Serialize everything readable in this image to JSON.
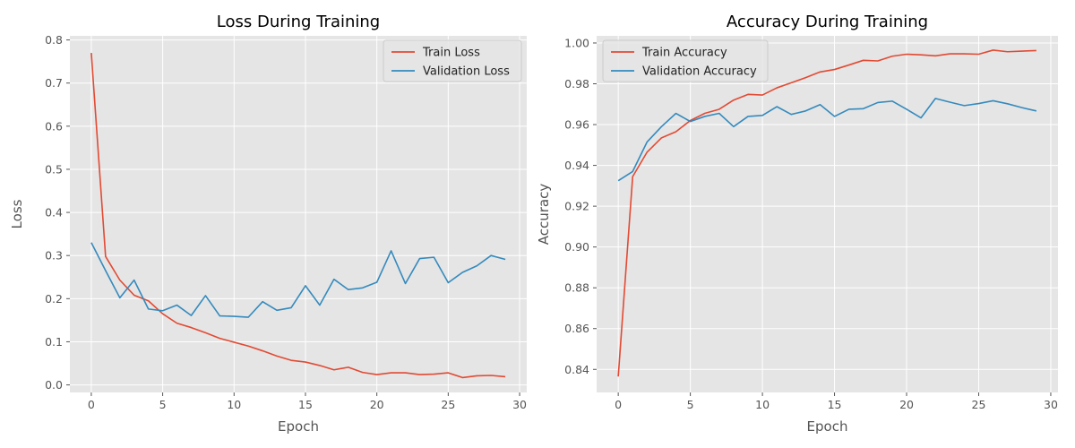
{
  "colors": {
    "train": "#E24A33",
    "validation": "#348ABD",
    "plot_bg": "#E5E5E5",
    "grid": "#FFFFFF"
  },
  "chart_data": [
    {
      "type": "line",
      "title": "Loss During Training",
      "xlabel": "Epoch",
      "ylabel": "Loss",
      "xlim": [
        -1.5,
        30.5
      ],
      "ylim": [
        -0.0175,
        0.8095
      ],
      "xticks": [
        0,
        5,
        10,
        15,
        20,
        25,
        30
      ],
      "xtick_labels": [
        "0",
        "5",
        "10",
        "15",
        "20",
        "25",
        "30"
      ],
      "yticks": [
        0.0,
        0.1,
        0.2,
        0.3,
        0.4,
        0.5,
        0.6,
        0.7,
        0.8
      ],
      "ytick_labels": [
        "0.0",
        "0.1",
        "0.2",
        "0.3",
        "0.4",
        "0.5",
        "0.6",
        "0.7",
        "0.8"
      ],
      "grid": true,
      "legend_position": "top-right",
      "x": [
        0,
        1,
        2,
        3,
        4,
        5,
        6,
        7,
        8,
        9,
        10,
        11,
        12,
        13,
        14,
        15,
        16,
        17,
        18,
        19,
        20,
        21,
        22,
        23,
        24,
        25,
        26,
        27,
        28,
        29
      ],
      "series": [
        {
          "name": "Train Loss",
          "color": "#E24A33",
          "values": [
            0.77,
            0.298,
            0.243,
            0.208,
            0.195,
            0.165,
            0.143,
            0.133,
            0.121,
            0.108,
            0.099,
            0.09,
            0.079,
            0.067,
            0.057,
            0.053,
            0.045,
            0.035,
            0.041,
            0.029,
            0.024,
            0.028,
            0.028,
            0.024,
            0.025,
            0.028,
            0.017,
            0.021,
            0.022,
            0.019
          ]
        },
        {
          "name": "Validation Loss",
          "color": "#348ABD",
          "values": [
            0.33,
            0.265,
            0.202,
            0.243,
            0.176,
            0.172,
            0.185,
            0.161,
            0.207,
            0.16,
            0.159,
            0.157,
            0.193,
            0.173,
            0.179,
            0.23,
            0.185,
            0.245,
            0.221,
            0.225,
            0.238,
            0.311,
            0.235,
            0.293,
            0.296,
            0.237,
            0.261,
            0.276,
            0.3,
            0.291
          ]
        }
      ]
    },
    {
      "type": "line",
      "title": "Accuracy During Training",
      "xlabel": "Epoch",
      "ylabel": "Accuracy",
      "xlim": [
        -1.5,
        30.5
      ],
      "ylim": [
        0.8287,
        1.0035
      ],
      "xticks": [
        0,
        5,
        10,
        15,
        20,
        25,
        30
      ],
      "xtick_labels": [
        "0",
        "5",
        "10",
        "15",
        "20",
        "25",
        "30"
      ],
      "yticks": [
        0.84,
        0.86,
        0.88,
        0.9,
        0.92,
        0.94,
        0.96,
        0.98,
        1.0
      ],
      "ytick_labels": [
        "0.84",
        "0.86",
        "0.88",
        "0.90",
        "0.92",
        "0.94",
        "0.96",
        "0.98",
        "1.00"
      ],
      "grid": true,
      "legend_position": "top-left",
      "x": [
        0,
        1,
        2,
        3,
        4,
        5,
        6,
        7,
        8,
        9,
        10,
        11,
        12,
        13,
        14,
        15,
        16,
        17,
        18,
        19,
        20,
        21,
        22,
        23,
        24,
        25,
        26,
        27,
        28,
        29
      ],
      "series": [
        {
          "name": "Train Accuracy",
          "color": "#E24A33",
          "values": [
            0.8365,
            0.9345,
            0.9465,
            0.9535,
            0.9565,
            0.962,
            0.9655,
            0.9675,
            0.972,
            0.9748,
            0.9745,
            0.978,
            0.9805,
            0.983,
            0.9858,
            0.987,
            0.9892,
            0.9915,
            0.9912,
            0.9935,
            0.9945,
            0.9942,
            0.9937,
            0.9947,
            0.9947,
            0.9945,
            0.9965,
            0.9957,
            0.996,
            0.9963
          ]
        },
        {
          "name": "Validation Accuracy",
          "color": "#348ABD",
          "values": [
            0.9325,
            0.937,
            0.9515,
            0.959,
            0.9655,
            0.9615,
            0.964,
            0.9655,
            0.959,
            0.964,
            0.9645,
            0.9688,
            0.965,
            0.9667,
            0.9698,
            0.964,
            0.9675,
            0.9678,
            0.9708,
            0.9715,
            0.9675,
            0.9633,
            0.9728,
            0.971,
            0.9693,
            0.9703,
            0.9717,
            0.9702,
            0.9683,
            0.9667
          ]
        }
      ]
    }
  ]
}
